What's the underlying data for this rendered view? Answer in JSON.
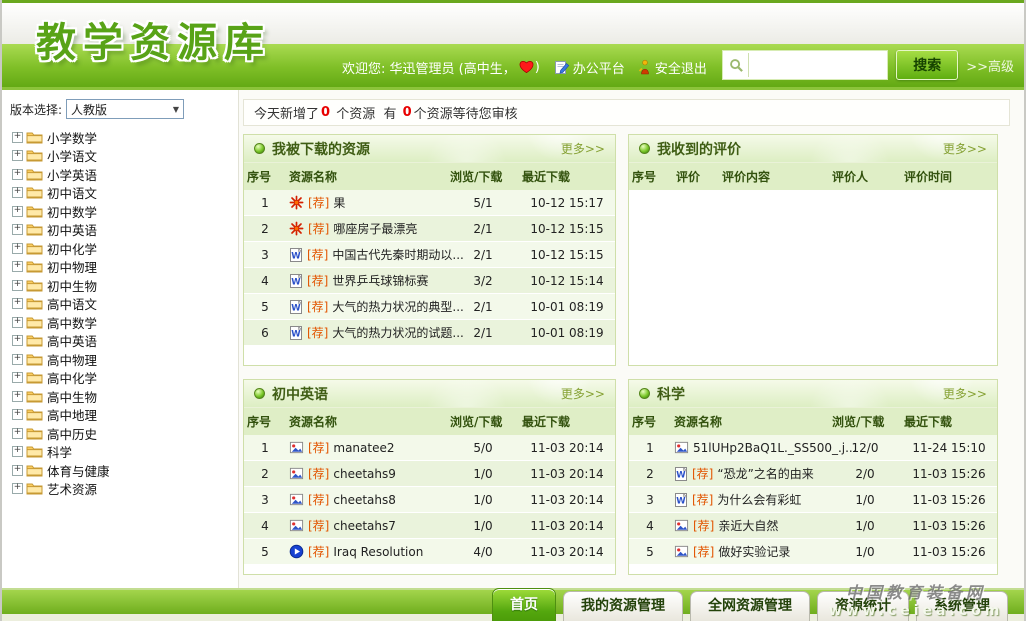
{
  "header": {
    "logo": "教学资源库",
    "tabs": [
      {
        "label": "首页",
        "active": true
      },
      {
        "label": "我的资源管理",
        "active": false
      },
      {
        "label": "全网资源管理",
        "active": false
      },
      {
        "label": "资源统计",
        "active": false
      },
      {
        "label": "系统管理",
        "active": false
      }
    ],
    "welcome_prefix": "欢迎您: 华迅管理员 (高中生，",
    "welcome_suffix": ")",
    "office_label": "办公平台",
    "logout_label": "安全退出",
    "search": {
      "placeholder": "",
      "button_label": "搜索",
      "advanced_label": ">>高级"
    }
  },
  "sidebar": {
    "version_label": "版本选择:",
    "version_value": "人教版",
    "tree": [
      "小学数学",
      "小学语文",
      "小学英语",
      "初中语文",
      "初中数学",
      "初中英语",
      "初中化学",
      "初中物理",
      "初中生物",
      "高中语文",
      "高中数学",
      "高中英语",
      "高中物理",
      "高中化学",
      "高中生物",
      "高中地理",
      "高中历史",
      "科学",
      "体育与健康",
      "艺术资源"
    ]
  },
  "notice": {
    "t1": "今天新增了",
    "n1": "0",
    "t2": " 个资源  有 ",
    "n2": "0",
    "t3": " 个资源等待您审核"
  },
  "panels": [
    {
      "title": "我被下载的资源",
      "more": "更多>>",
      "columns": [
        "序号",
        "资源名称",
        "浏览/下载",
        "最近下载"
      ],
      "rows": [
        {
          "no": "1",
          "icon": "flash-icon",
          "tag": "[荐]",
          "name": "果",
          "stat": "5/1",
          "date": "10-12 15:17"
        },
        {
          "no": "2",
          "icon": "flash-icon",
          "tag": "[荐]",
          "name": "哪座房子最漂亮",
          "stat": "2/1",
          "date": "10-12 15:15"
        },
        {
          "no": "3",
          "icon": "word-icon",
          "tag": "[荐]",
          "name": "中国古代先秦时期动以...",
          "stat": "2/1",
          "date": "10-12 15:15"
        },
        {
          "no": "4",
          "icon": "word-icon",
          "tag": "[荐]",
          "name": "世界乒乓球锦标赛",
          "stat": "3/2",
          "date": "10-12 15:14"
        },
        {
          "no": "5",
          "icon": "word-icon",
          "tag": "[荐]",
          "name": "大气的热力状况的典型...",
          "stat": "2/1",
          "date": "10-01 08:19"
        },
        {
          "no": "6",
          "icon": "word-icon",
          "tag": "[荐]",
          "name": "大气的热力状况的试题...",
          "stat": "2/1",
          "date": "10-01 08:19"
        }
      ]
    },
    {
      "title": "我收到的评价",
      "more": "更多>>",
      "columns": [
        "序号",
        "评价",
        "评价内容",
        "评价人",
        "评价时间"
      ],
      "rows": []
    },
    {
      "title": "初中英语",
      "more": "更多>>",
      "columns": [
        "序号",
        "资源名称",
        "浏览/下载",
        "最近下载"
      ],
      "rows": [
        {
          "no": "1",
          "icon": "picture-icon",
          "tag": "[荐]",
          "name": "manatee2",
          "stat": "5/0",
          "date": "11-03 20:14"
        },
        {
          "no": "2",
          "icon": "picture-icon",
          "tag": "[荐]",
          "name": "cheetahs9",
          "stat": "1/0",
          "date": "11-03 20:14"
        },
        {
          "no": "3",
          "icon": "picture-icon",
          "tag": "[荐]",
          "name": "cheetahs8",
          "stat": "1/0",
          "date": "11-03 20:14"
        },
        {
          "no": "4",
          "icon": "picture-icon",
          "tag": "[荐]",
          "name": "cheetahs7",
          "stat": "1/0",
          "date": "11-03 20:14"
        },
        {
          "no": "5",
          "icon": "media-icon",
          "tag": "[荐]",
          "name": "Iraq Resolution",
          "stat": "4/0",
          "date": "11-03 20:14"
        }
      ]
    },
    {
      "title": "科学",
      "more": "更多>>",
      "columns": [
        "序号",
        "资源名称",
        "浏览/下载",
        "最近下载"
      ],
      "rows": [
        {
          "no": "1",
          "icon": "picture-icon",
          "tag": "",
          "name": "51lUHp2BaQ1L._SS500_.j...",
          "stat": "12/0",
          "date": "11-24 15:10"
        },
        {
          "no": "2",
          "icon": "word-icon",
          "tag": "[荐]",
          "name": "“恐龙”之名的由来",
          "stat": "2/0",
          "date": "11-03 15:26"
        },
        {
          "no": "3",
          "icon": "word-icon",
          "tag": "[荐]",
          "name": "为什么会有彩虹",
          "stat": "1/0",
          "date": "11-03 15:26"
        },
        {
          "no": "4",
          "icon": "picture-icon",
          "tag": "[荐]",
          "name": "亲近大自然",
          "stat": "1/0",
          "date": "11-03 15:26"
        },
        {
          "no": "5",
          "icon": "picture-icon",
          "tag": "[荐]",
          "name": "做好实验记录",
          "stat": "1/0",
          "date": "11-03 15:26"
        }
      ]
    }
  ],
  "footer": {
    "watermark_cn": "中国教育装备网",
    "watermark_url": "www.ceiea.com"
  }
}
